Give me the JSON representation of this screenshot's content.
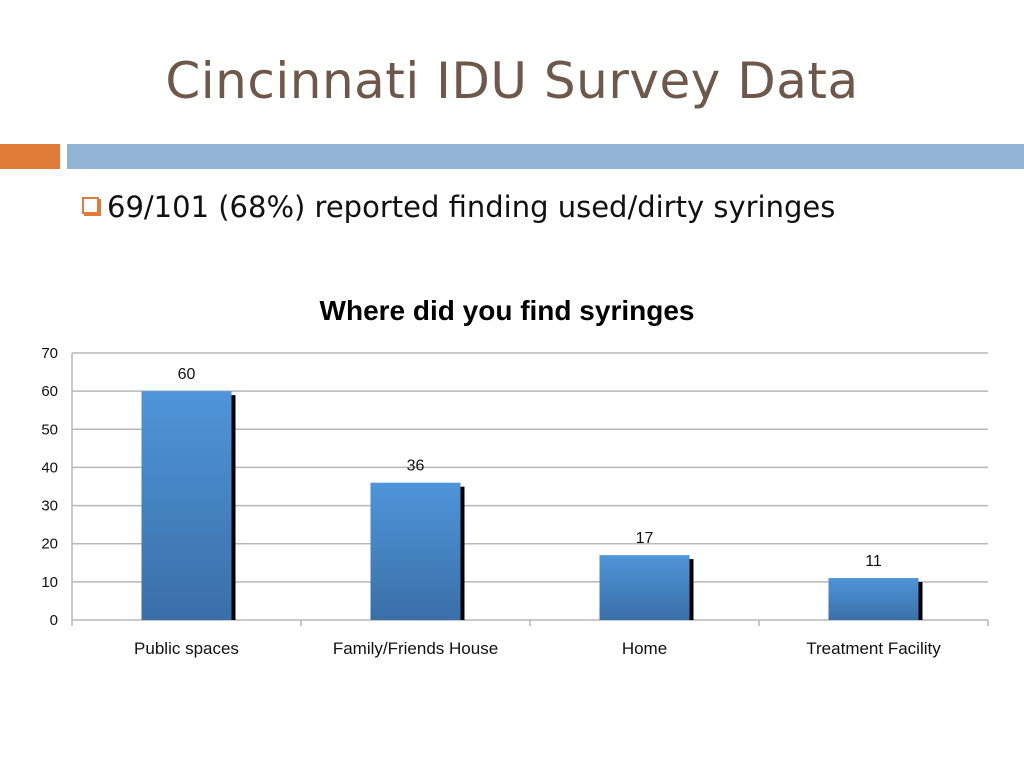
{
  "slide": {
    "title": "Cincinnati IDU Survey Data",
    "bullet": "69/101 (68%) reported finding used/dirty syringes",
    "accent_orange": "#e07b39",
    "accent_blue": "#92b4d4",
    "title_color": "#6e5849"
  },
  "chart_data": {
    "type": "bar",
    "title": "Where did you find syringes",
    "categories": [
      "Public spaces",
      "Family/Friends House",
      "Home",
      "Treatment Facility"
    ],
    "values": [
      60,
      36,
      17,
      11
    ],
    "data_labels": [
      "60",
      "36",
      "17",
      "11"
    ],
    "ylim": [
      0,
      70
    ],
    "yticks": [
      0,
      10,
      20,
      30,
      40,
      50,
      60,
      70
    ],
    "ytick_labels": [
      "0",
      "10",
      "20",
      "30",
      "40",
      "50",
      "60",
      "70"
    ],
    "grid": true,
    "bar_color": "#4a8ed2"
  }
}
